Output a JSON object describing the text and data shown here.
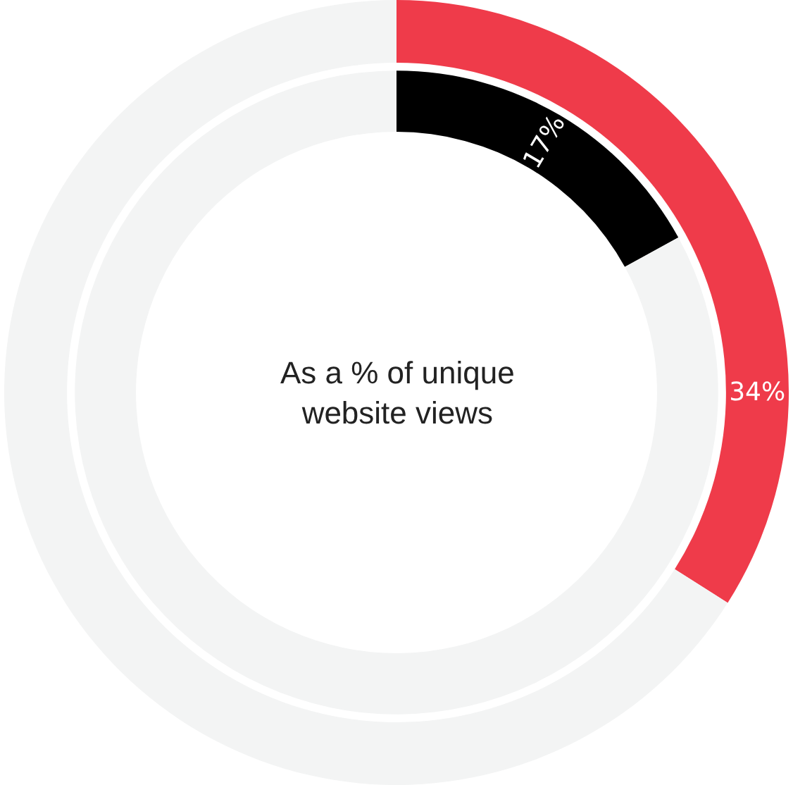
{
  "chart_data": [
    {
      "type": "donut",
      "categories": [
        null,
        null
      ],
      "values": [
        34,
        66
      ],
      "colors": [
        "#ef3b4a",
        "#f3f4f4"
      ],
      "value_labels": [
        "34%",
        null
      ]
    },
    {
      "type": "donut",
      "categories": [
        null,
        null
      ],
      "values": [
        17,
        83
      ],
      "colors": [
        "#000000",
        "#f3f4f4"
      ],
      "value_labels": [
        "17%",
        null
      ],
      "annotations": [
        "As a % of unique\nwebsite views"
      ]
    }
  ]
}
